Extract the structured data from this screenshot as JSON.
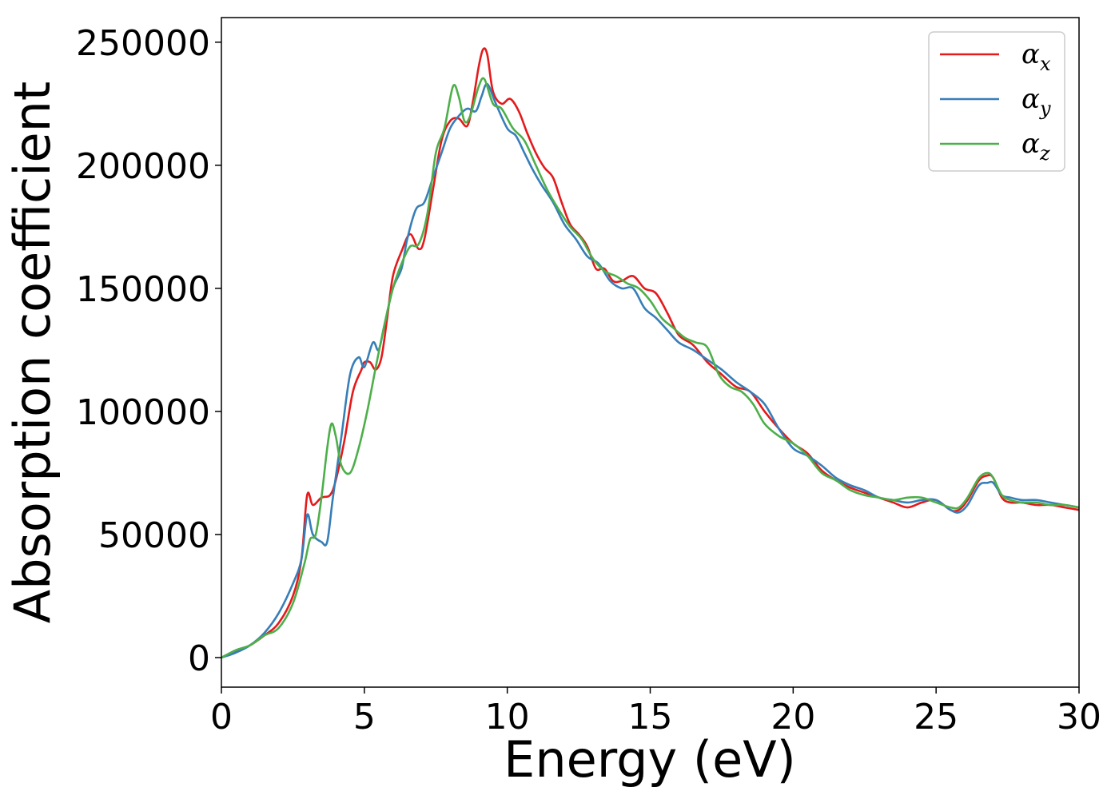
{
  "chart_data": {
    "type": "line",
    "title": "",
    "xlabel": "Energy (eV)",
    "ylabel": "Absorption coefficient",
    "xlim": [
      0,
      30
    ],
    "ylim": [
      -12000,
      260000
    ],
    "xticks": [
      0,
      5,
      10,
      15,
      20,
      25,
      30
    ],
    "xtick_labels": [
      "0",
      "5",
      "10",
      "15",
      "20",
      "25",
      "30"
    ],
    "yticks": [
      0,
      50000,
      100000,
      150000,
      200000,
      250000
    ],
    "ytick_labels": [
      "0",
      "50000",
      "100000",
      "150000",
      "200000",
      "250000"
    ],
    "grid": false,
    "legend_position": "top-right",
    "series": [
      {
        "name": "α_x",
        "legend_base": "α",
        "legend_sub": "x",
        "color": "#e41a1c",
        "x": [
          0,
          0.5,
          1,
          1.5,
          2,
          2.5,
          2.8,
          3,
          3.2,
          3.5,
          3.8,
          4,
          4.3,
          4.6,
          4.9,
          5,
          5.2,
          5.4,
          5.6,
          5.8,
          6,
          6.3,
          6.6,
          6.9,
          7.1,
          7.4,
          7.7,
          8,
          8.3,
          8.6,
          8.8,
          9,
          9.15,
          9.3,
          9.5,
          9.8,
          10.1,
          10.4,
          10.7,
          11,
          11.3,
          11.6,
          11.9,
          12.2,
          12.5,
          12.8,
          13.1,
          13.4,
          13.7,
          14,
          14.4,
          14.8,
          15.2,
          15.6,
          16,
          16.5,
          17,
          17.5,
          18,
          18.5,
          19,
          19.5,
          20,
          20.5,
          21,
          21.5,
          22,
          22.5,
          23,
          23.5,
          24,
          24.5,
          25,
          25.5,
          25.8,
          26.1,
          26.5,
          26.8,
          27,
          27.3,
          27.6,
          28,
          28.5,
          29,
          29.5,
          30
        ],
        "y": [
          0,
          2500,
          5000,
          9000,
          14000,
          25000,
          40000,
          66000,
          62000,
          65000,
          66000,
          72000,
          88000,
          108000,
          117000,
          120000,
          120000,
          117000,
          122000,
          138000,
          155000,
          165000,
          172000,
          166000,
          170000,
          190000,
          210000,
          218000,
          219000,
          216000,
          226000,
          240000,
          247000,
          245000,
          230000,
          225000,
          227000,
          222000,
          213000,
          205000,
          199000,
          195000,
          185000,
          176000,
          172000,
          167000,
          158000,
          158000,
          153000,
          153000,
          155000,
          150000,
          148000,
          140000,
          131000,
          127000,
          120000,
          115000,
          110000,
          108000,
          100000,
          93000,
          87000,
          83000,
          76000,
          72000,
          69000,
          67000,
          65000,
          63000,
          61000,
          63000,
          64000,
          60000,
          60000,
          64000,
          72000,
          74000,
          73000,
          65000,
          63000,
          63000,
          62000,
          62000,
          61000,
          60000
        ]
      },
      {
        "name": "α_y",
        "legend_base": "α",
        "legend_sub": "y",
        "color": "#377eb8",
        "x": [
          0,
          0.5,
          1,
          1.5,
          2,
          2.5,
          2.8,
          3,
          3.2,
          3.5,
          3.7,
          3.9,
          4.2,
          4.5,
          4.8,
          5,
          5.3,
          5.5,
          5.7,
          6,
          6.3,
          6.5,
          6.8,
          7.1,
          7.4,
          7.7,
          8,
          8.3,
          8.6,
          8.9,
          9.1,
          9.3,
          9.6,
          10,
          10.3,
          10.6,
          10.9,
          11.2,
          11.6,
          12,
          12.4,
          12.8,
          13.2,
          13.6,
          14,
          14.4,
          14.8,
          15.2,
          15.6,
          16,
          16.5,
          17,
          17.5,
          18,
          18.5,
          19,
          19.5,
          20,
          20.5,
          21,
          21.5,
          22,
          22.5,
          23,
          23.5,
          24,
          24.5,
          25,
          25.5,
          25.8,
          26.1,
          26.5,
          26.8,
          27,
          27.3,
          27.6,
          28,
          28.5,
          29,
          29.5,
          30
        ],
        "y": [
          0,
          2000,
          5000,
          10000,
          18000,
          30000,
          40000,
          58000,
          50000,
          47000,
          47000,
          65000,
          90000,
          115000,
          122000,
          118000,
          128000,
          125000,
          135000,
          150000,
          158000,
          170000,
          182000,
          185000,
          195000,
          205000,
          215000,
          220000,
          223000,
          222000,
          228000,
          233000,
          225000,
          215000,
          212000,
          205000,
          198000,
          192000,
          185000,
          176000,
          170000,
          163000,
          160000,
          153000,
          150000,
          150000,
          142000,
          138000,
          133000,
          128000,
          125000,
          121000,
          117000,
          112000,
          108000,
          103000,
          93000,
          85000,
          82000,
          78000,
          73000,
          70000,
          68000,
          65000,
          64000,
          63000,
          64000,
          64000,
          60000,
          59000,
          62000,
          70000,
          71000,
          71000,
          66000,
          65000,
          64000,
          64000,
          63000,
          62000,
          61000
        ]
      },
      {
        "name": "α_z",
        "legend_base": "α",
        "legend_sub": "z",
        "color": "#4daf4a",
        "x": [
          0,
          0.5,
          1,
          1.5,
          2,
          2.5,
          2.9,
          3.1,
          3.3,
          3.5,
          3.7,
          3.85,
          4,
          4.2,
          4.5,
          4.8,
          5.1,
          5.4,
          5.7,
          6,
          6.3,
          6.6,
          6.9,
          7.2,
          7.5,
          7.8,
          8.1,
          8.3,
          8.5,
          8.7,
          9,
          9.2,
          9.5,
          9.8,
          10.2,
          10.6,
          11,
          11.4,
          11.8,
          12.2,
          12.6,
          13,
          13.4,
          13.8,
          14.2,
          14.6,
          15,
          15.4,
          15.8,
          16.2,
          16.6,
          17,
          17.4,
          17.8,
          18.2,
          18.6,
          19,
          19.5,
          20,
          20.5,
          21,
          21.5,
          22,
          22.5,
          23,
          23.5,
          24,
          24.5,
          25,
          25.5,
          25.8,
          26.1,
          26.5,
          26.8,
          27,
          27.3,
          27.6,
          28,
          28.5,
          29,
          29.5,
          30
        ],
        "y": [
          0,
          3000,
          5000,
          9000,
          12000,
          22000,
          38000,
          48000,
          50000,
          65000,
          85000,
          95000,
          90000,
          78000,
          75000,
          85000,
          100000,
          118000,
          135000,
          150000,
          160000,
          167000,
          168000,
          180000,
          205000,
          215000,
          232000,
          228000,
          218000,
          220000,
          232000,
          235000,
          225000,
          223000,
          215000,
          210000,
          200000,
          190000,
          182000,
          175000,
          170000,
          162000,
          157000,
          155000,
          152000,
          150000,
          145000,
          138000,
          134000,
          130000,
          128000,
          126000,
          115000,
          110000,
          108000,
          103000,
          95000,
          90000,
          87000,
          82000,
          75000,
          72000,
          68000,
          66000,
          65000,
          64000,
          65000,
          65000,
          63000,
          61000,
          61000,
          65000,
          73000,
          75000,
          73000,
          66000,
          64000,
          63000,
          63000,
          62000,
          62000,
          61000
        ]
      }
    ]
  }
}
